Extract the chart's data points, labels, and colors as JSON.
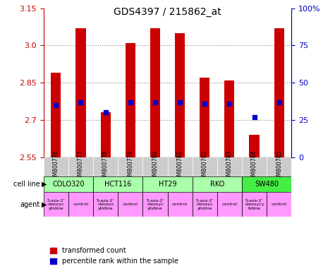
{
  "title": "GDS4397 / 215862_at",
  "samples": [
    "GSM800776",
    "GSM800777",
    "GSM800778",
    "GSM800779",
    "GSM800780",
    "GSM800781",
    "GSM800782",
    "GSM800783",
    "GSM800784",
    "GSM800785"
  ],
  "transformed_count": [
    2.89,
    3.07,
    2.73,
    3.01,
    3.07,
    3.05,
    2.87,
    2.86,
    2.64,
    3.07
  ],
  "percentile_rank": [
    35,
    37,
    30,
    37,
    37,
    37,
    36,
    36,
    27,
    37
  ],
  "ymin": 2.55,
  "ymax": 3.15,
  "yticks": [
    2.55,
    2.7,
    2.85,
    3.0,
    3.15
  ],
  "right_yticks": [
    0,
    25,
    50,
    75,
    100
  ],
  "cell_lines": [
    {
      "label": "COLO320",
      "start": 0,
      "end": 1,
      "color": "#ccffcc"
    },
    {
      "label": "HCT116",
      "start": 2,
      "end": 3,
      "color": "#ccffcc"
    },
    {
      "label": "HT29",
      "start": 4,
      "end": 5,
      "color": "#ccffcc"
    },
    {
      "label": "RKO",
      "start": 6,
      "end": 7,
      "color": "#ccffcc"
    },
    {
      "label": "SW480",
      "start": 8,
      "end": 9,
      "color": "#33cc33"
    }
  ],
  "agents": [
    {
      "label": "5-aza-2'\n-deoxyc\nytidine",
      "start": 0,
      "end": 0,
      "color": "#ff99ff"
    },
    {
      "label": "control",
      "start": 1,
      "end": 1,
      "color": "#ff99ff"
    },
    {
      "label": "5-aza-2'\n-deoxyc\nytidine",
      "start": 2,
      "end": 2,
      "color": "#ff99ff"
    },
    {
      "label": "control",
      "start": 3,
      "end": 3,
      "color": "#ff99ff"
    },
    {
      "label": "5-aza-2'\n-deoxyc\nytidine",
      "start": 4,
      "end": 4,
      "color": "#ff99ff"
    },
    {
      "label": "control",
      "start": 5,
      "end": 5,
      "color": "#ff99ff"
    },
    {
      "label": "5-aza-2'\n-deoxyc\nytidine",
      "start": 6,
      "end": 6,
      "color": "#ff99ff"
    },
    {
      "label": "control",
      "start": 7,
      "end": 7,
      "color": "#ff99ff"
    },
    {
      "label": "5-aza-2'\n-deoxycy\ntidine",
      "start": 8,
      "end": 8,
      "color": "#ff99ff"
    },
    {
      "label": "control",
      "start": 9,
      "end": 9,
      "color": "#ff99ff"
    }
  ],
  "bar_color": "#cc0000",
  "dot_color": "#0000cc",
  "bar_width": 0.4,
  "gridline_color": "#888888",
  "tick_color_left": "#cc0000",
  "tick_color_right": "#0000cc",
  "sample_bg_color": "#cccccc",
  "legend_red_label": "transformed count",
  "legend_blue_label": "percentile rank within the sample"
}
